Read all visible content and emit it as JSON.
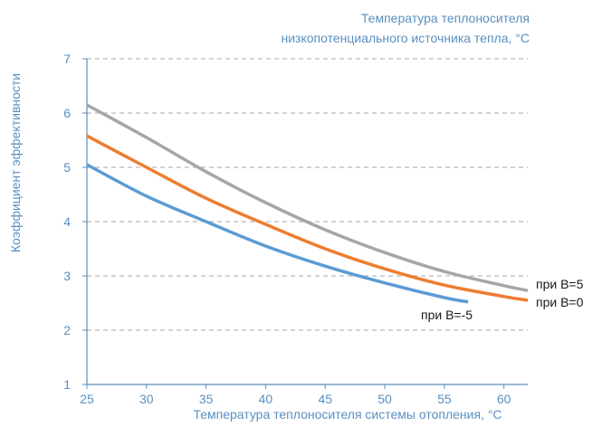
{
  "chart_data": {
    "type": "line",
    "title": "Температура теплоносителя низкопотенциального источника тепла, °С",
    "title_lines": [
      "Температура теплоносителя",
      "низкопотенциального источника тепла, °С"
    ],
    "xlabel": "Температура теплоносителя системы отопления, °С",
    "ylabel": "Коэффициент эффективности",
    "xlim": [
      25,
      62
    ],
    "ylim": [
      1,
      7
    ],
    "x_ticks": [
      25,
      30,
      35,
      40,
      45,
      50,
      55,
      60
    ],
    "y_ticks": [
      1,
      2,
      3,
      4,
      5,
      6,
      7
    ],
    "grid": "horizontal dashed",
    "series": [
      {
        "name": "при В=5",
        "color": "#a6a6a6",
        "x": [
          25,
          30,
          35,
          40,
          45,
          50,
          55,
          60,
          62
        ],
        "y": [
          6.15,
          5.55,
          4.92,
          4.35,
          3.85,
          3.43,
          3.08,
          2.82,
          2.73
        ]
      },
      {
        "name": "при В=0",
        "color": "#ed7d31",
        "x": [
          25,
          30,
          35,
          40,
          45,
          50,
          55,
          60,
          62
        ],
        "y": [
          5.58,
          5.0,
          4.43,
          3.95,
          3.5,
          3.13,
          2.83,
          2.62,
          2.55
        ]
      },
      {
        "name": "при В=-5",
        "color": "#5b9bd5",
        "x": [
          25,
          30,
          35,
          40,
          45,
          50,
          55,
          57
        ],
        "y": [
          5.05,
          4.47,
          4.0,
          3.55,
          3.18,
          2.87,
          2.6,
          2.52
        ]
      }
    ],
    "axis_color": "#5a8fc0",
    "grid_color": "#a7a7a7"
  }
}
